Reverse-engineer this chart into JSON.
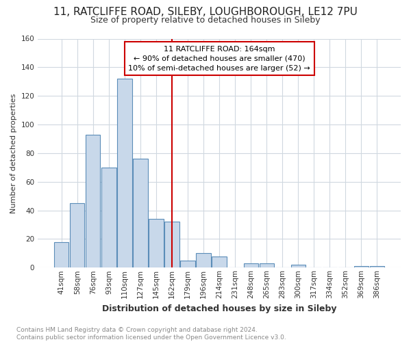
{
  "title": "11, RATCLIFFE ROAD, SILEBY, LOUGHBOROUGH, LE12 7PU",
  "subtitle": "Size of property relative to detached houses in Sileby",
  "xlabel": "Distribution of detached houses by size in Sileby",
  "ylabel": "Number of detached properties",
  "categories": [
    "41sqm",
    "58sqm",
    "76sqm",
    "93sqm",
    "110sqm",
    "127sqm",
    "145sqm",
    "162sqm",
    "179sqm",
    "196sqm",
    "214sqm",
    "231sqm",
    "248sqm",
    "265sqm",
    "283sqm",
    "300sqm",
    "317sqm",
    "334sqm",
    "352sqm",
    "369sqm",
    "386sqm"
  ],
  "values": [
    18,
    45,
    93,
    70,
    132,
    76,
    34,
    32,
    5,
    10,
    8,
    0,
    3,
    3,
    0,
    2,
    0,
    0,
    0,
    1,
    1
  ],
  "bar_color": "#c8d8ea",
  "bar_edge_color": "#5b8db8",
  "vline_index": 7,
  "annotation_text1": "11 RATCLIFFE ROAD: 164sqm",
  "annotation_text2": "← 90% of detached houses are smaller (470)",
  "annotation_text3": "10% of semi-detached houses are larger (52) →",
  "annotation_box_color": "#cc0000",
  "vline_color": "#cc0000",
  "footer_text": "Contains HM Land Registry data © Crown copyright and database right 2024.\nContains public sector information licensed under the Open Government Licence v3.0.",
  "bg_color": "#ffffff",
  "plot_bg_color": "#ffffff",
  "grid_color": "#d0d8e0",
  "ylim": [
    0,
    160
  ],
  "yticks": [
    0,
    20,
    40,
    60,
    80,
    100,
    120,
    140,
    160
  ],
  "title_fontsize": 11,
  "subtitle_fontsize": 9,
  "tick_fontsize": 7.5,
  "ylabel_fontsize": 8,
  "xlabel_fontsize": 9
}
